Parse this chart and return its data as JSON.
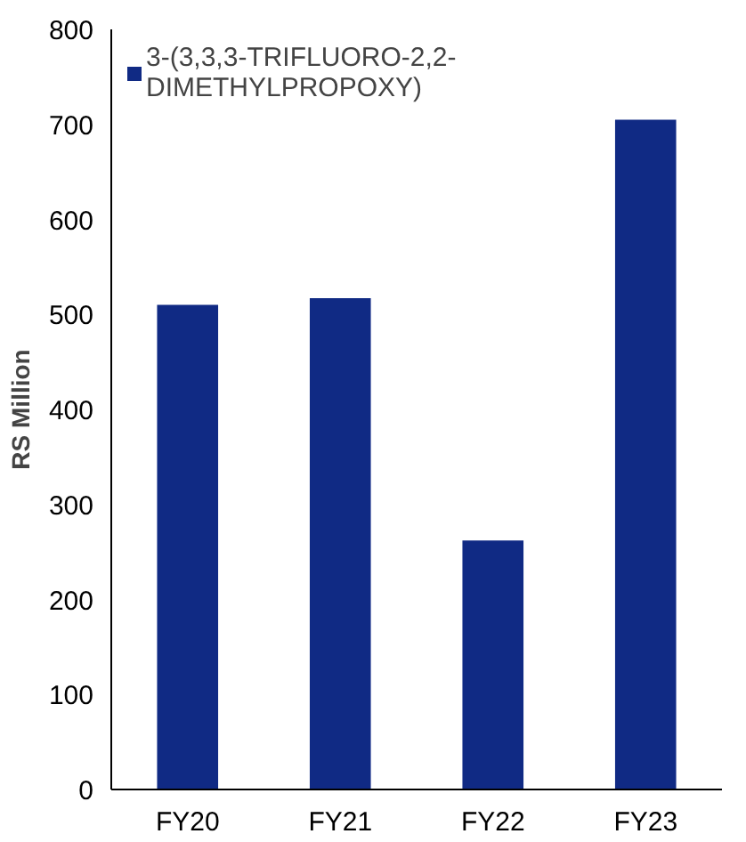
{
  "chart_data": {
    "type": "bar",
    "ylabel": "RS Million",
    "categories": [
      "FY20",
      "FY21",
      "FY22",
      "FY23"
    ],
    "series": [
      {
        "name": "3-(3,3,3-TRIFLUORO-2,2-DIMETHYLPROPOXY)",
        "color": "#102a84",
        "values": [
          510,
          517,
          262,
          705
        ]
      }
    ],
    "ylim": [
      0,
      800
    ],
    "yticks": [
      0,
      100,
      200,
      300,
      400,
      500,
      600,
      700,
      800
    ],
    "grid": false,
    "legend": "top left"
  }
}
